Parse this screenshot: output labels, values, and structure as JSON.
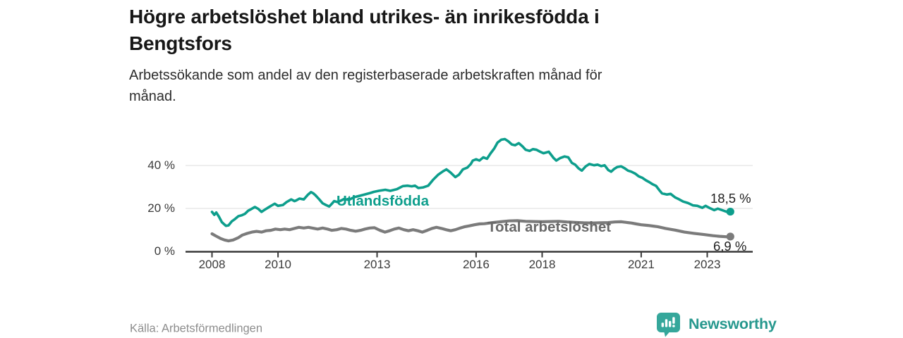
{
  "header": {
    "title_lines": [
      "Högre arbetslöshet bland utrikes- än inrikesfödda i",
      "Bengtsfors"
    ],
    "subtitle_lines": [
      "Arbetssökande som andel av den registerbaserade arbetskraften månad för",
      "månad."
    ]
  },
  "footer": {
    "source": "Källa: Arbetsförmedlingen",
    "brand": "Newsworthy"
  },
  "colors": {
    "accent_teal": "#0d9e8c",
    "gray_line": "#7b7b7b",
    "gray_label": "#686868",
    "grid": "#e3e3e3",
    "axis": "#3a3a3a",
    "logo_icon": "#35a79b",
    "logo_text": "#27988e"
  },
  "chart_data": {
    "type": "line",
    "title": "Högre arbetslöshet bland utrikes- än inrikesfödda i Bengtsfors",
    "subtitle": "Arbetssökande som andel av den registerbaserade arbetskraften månad för månad.",
    "x_axis": {
      "tick_values": [
        2008,
        2010,
        2013,
        2016,
        2018,
        2021,
        2023
      ],
      "tick_labels": [
        "2008",
        "2010",
        "2013",
        "2016",
        "2018",
        "2021",
        "2023"
      ],
      "range": [
        2008,
        2023.8
      ]
    },
    "y_axis": {
      "tick_values": [
        0,
        20,
        40
      ],
      "tick_labels": [
        "0 %",
        "20 %",
        "40 %"
      ],
      "grid_values": [
        20,
        40
      ],
      "ylim": [
        0,
        53
      ],
      "unit": "%"
    },
    "legend_position": "inline-labels",
    "grid": true,
    "series": [
      {
        "name": "Utlandsfödda",
        "color": "#0d9e8c",
        "end_label": "18,5 %",
        "end_value": 18.5,
        "points": [
          [
            2008.0,
            18.4
          ],
          [
            2008.07,
            17.0
          ],
          [
            2008.13,
            18.1
          ],
          [
            2008.21,
            16.2
          ],
          [
            2008.3,
            13.6
          ],
          [
            2008.42,
            11.9
          ],
          [
            2008.5,
            12.1
          ],
          [
            2008.6,
            14.0
          ],
          [
            2008.7,
            15.1
          ],
          [
            2008.8,
            16.4
          ],
          [
            2008.9,
            16.8
          ],
          [
            2009.0,
            17.5
          ],
          [
            2009.1,
            19.0
          ],
          [
            2009.2,
            19.8
          ],
          [
            2009.3,
            20.7
          ],
          [
            2009.4,
            19.8
          ],
          [
            2009.5,
            18.4
          ],
          [
            2009.6,
            19.4
          ],
          [
            2009.7,
            20.4
          ],
          [
            2009.8,
            21.3
          ],
          [
            2009.9,
            22.2
          ],
          [
            2010.0,
            21.2
          ],
          [
            2010.15,
            21.6
          ],
          [
            2010.25,
            22.9
          ],
          [
            2010.4,
            24.2
          ],
          [
            2010.5,
            23.4
          ],
          [
            2010.55,
            23.7
          ],
          [
            2010.65,
            24.6
          ],
          [
            2010.78,
            24.2
          ],
          [
            2010.9,
            26.3
          ],
          [
            2011.0,
            27.6
          ],
          [
            2011.06,
            27.1
          ],
          [
            2011.13,
            26.2
          ],
          [
            2011.25,
            24.2
          ],
          [
            2011.35,
            22.4
          ],
          [
            2011.45,
            21.6
          ],
          [
            2011.55,
            20.9
          ],
          [
            2011.62,
            22.0
          ],
          [
            2011.7,
            23.4
          ],
          [
            2011.8,
            23.0
          ],
          [
            2011.9,
            23.6
          ],
          [
            2012.0,
            24.4
          ],
          [
            2012.15,
            24.0
          ],
          [
            2012.3,
            25.2
          ],
          [
            2012.5,
            26.0
          ],
          [
            2012.65,
            26.6
          ],
          [
            2012.8,
            27.2
          ],
          [
            2012.9,
            27.7
          ],
          [
            2013.05,
            28.2
          ],
          [
            2013.25,
            28.7
          ],
          [
            2013.4,
            28.2
          ],
          [
            2013.6,
            29.0
          ],
          [
            2013.78,
            30.4
          ],
          [
            2013.92,
            30.6
          ],
          [
            2014.05,
            30.3
          ],
          [
            2014.15,
            30.6
          ],
          [
            2014.25,
            29.5
          ],
          [
            2014.4,
            29.8
          ],
          [
            2014.55,
            30.6
          ],
          [
            2014.7,
            33.4
          ],
          [
            2014.85,
            35.7
          ],
          [
            2015.0,
            37.3
          ],
          [
            2015.1,
            38.2
          ],
          [
            2015.22,
            36.8
          ],
          [
            2015.37,
            34.6
          ],
          [
            2015.48,
            35.7
          ],
          [
            2015.6,
            38.2
          ],
          [
            2015.73,
            39.0
          ],
          [
            2015.84,
            40.7
          ],
          [
            2015.9,
            42.3
          ],
          [
            2016.0,
            42.9
          ],
          [
            2016.1,
            42.3
          ],
          [
            2016.22,
            43.8
          ],
          [
            2016.33,
            43.1
          ],
          [
            2016.44,
            45.7
          ],
          [
            2016.55,
            47.9
          ],
          [
            2016.65,
            50.7
          ],
          [
            2016.76,
            52.0
          ],
          [
            2016.87,
            52.3
          ],
          [
            2016.97,
            51.3
          ],
          [
            2017.08,
            49.8
          ],
          [
            2017.18,
            49.4
          ],
          [
            2017.29,
            50.4
          ],
          [
            2017.4,
            49.0
          ],
          [
            2017.5,
            47.3
          ],
          [
            2017.62,
            46.8
          ],
          [
            2017.72,
            47.6
          ],
          [
            2017.83,
            47.3
          ],
          [
            2017.94,
            46.4
          ],
          [
            2018.04,
            45.7
          ],
          [
            2018.2,
            46.4
          ],
          [
            2018.35,
            43.4
          ],
          [
            2018.43,
            42.3
          ],
          [
            2018.54,
            43.4
          ],
          [
            2018.68,
            44.2
          ],
          [
            2018.79,
            43.8
          ],
          [
            2018.9,
            41.2
          ],
          [
            2019.0,
            40.4
          ],
          [
            2019.1,
            38.7
          ],
          [
            2019.2,
            37.6
          ],
          [
            2019.32,
            39.6
          ],
          [
            2019.43,
            40.7
          ],
          [
            2019.57,
            40.1
          ],
          [
            2019.68,
            40.4
          ],
          [
            2019.79,
            39.7
          ],
          [
            2019.89,
            40.1
          ],
          [
            2020.0,
            37.9
          ],
          [
            2020.09,
            37.1
          ],
          [
            2020.18,
            38.4
          ],
          [
            2020.28,
            39.3
          ],
          [
            2020.39,
            39.6
          ],
          [
            2020.5,
            38.7
          ],
          [
            2020.6,
            37.6
          ],
          [
            2020.7,
            37.1
          ],
          [
            2020.82,
            36.2
          ],
          [
            2020.92,
            35.0
          ],
          [
            2021.03,
            34.3
          ],
          [
            2021.14,
            33.1
          ],
          [
            2021.24,
            32.3
          ],
          [
            2021.35,
            31.2
          ],
          [
            2021.45,
            30.5
          ],
          [
            2021.55,
            28.5
          ],
          [
            2021.63,
            27.0
          ],
          [
            2021.78,
            26.5
          ],
          [
            2021.89,
            26.8
          ],
          [
            2022.03,
            25.1
          ],
          [
            2022.14,
            24.3
          ],
          [
            2022.27,
            23.2
          ],
          [
            2022.42,
            22.5
          ],
          [
            2022.57,
            21.4
          ],
          [
            2022.7,
            21.2
          ],
          [
            2022.85,
            20.3
          ],
          [
            2022.95,
            21.2
          ],
          [
            2023.06,
            20.3
          ],
          [
            2023.21,
            19.2
          ],
          [
            2023.32,
            19.9
          ],
          [
            2023.45,
            19.2
          ],
          [
            2023.6,
            18.4
          ],
          [
            2023.7,
            18.5
          ]
        ]
      },
      {
        "name": "Total arbetslöshet",
        "color": "#7b7b7b",
        "end_label": "6,9 %",
        "end_value": 6.9,
        "points": [
          [
            2008.0,
            8.2
          ],
          [
            2008.1,
            7.3
          ],
          [
            2008.26,
            6.0
          ],
          [
            2008.38,
            5.3
          ],
          [
            2008.5,
            4.9
          ],
          [
            2008.64,
            5.3
          ],
          [
            2008.8,
            6.4
          ],
          [
            2008.92,
            7.6
          ],
          [
            2009.07,
            8.4
          ],
          [
            2009.21,
            9.0
          ],
          [
            2009.35,
            9.3
          ],
          [
            2009.5,
            9.0
          ],
          [
            2009.64,
            9.6
          ],
          [
            2009.78,
            9.8
          ],
          [
            2009.92,
            10.4
          ],
          [
            2010.07,
            10.1
          ],
          [
            2010.2,
            10.4
          ],
          [
            2010.35,
            10.1
          ],
          [
            2010.5,
            10.7
          ],
          [
            2010.63,
            11.2
          ],
          [
            2010.78,
            10.9
          ],
          [
            2010.92,
            11.2
          ],
          [
            2011.06,
            10.8
          ],
          [
            2011.2,
            10.4
          ],
          [
            2011.35,
            10.9
          ],
          [
            2011.5,
            10.4
          ],
          [
            2011.63,
            9.8
          ],
          [
            2011.78,
            10.1
          ],
          [
            2011.92,
            10.7
          ],
          [
            2012.06,
            10.4
          ],
          [
            2012.2,
            9.8
          ],
          [
            2012.35,
            9.4
          ],
          [
            2012.5,
            9.8
          ],
          [
            2012.63,
            10.4
          ],
          [
            2012.78,
            10.9
          ],
          [
            2012.92,
            11.0
          ],
          [
            2013.09,
            9.8
          ],
          [
            2013.24,
            9.0
          ],
          [
            2013.38,
            9.6
          ],
          [
            2013.52,
            10.4
          ],
          [
            2013.66,
            10.9
          ],
          [
            2013.81,
            10.1
          ],
          [
            2013.95,
            9.6
          ],
          [
            2014.09,
            10.1
          ],
          [
            2014.23,
            9.6
          ],
          [
            2014.37,
            9.0
          ],
          [
            2014.52,
            9.8
          ],
          [
            2014.66,
            10.7
          ],
          [
            2014.8,
            11.2
          ],
          [
            2014.95,
            10.7
          ],
          [
            2015.09,
            10.1
          ],
          [
            2015.23,
            9.6
          ],
          [
            2015.37,
            10.1
          ],
          [
            2015.52,
            10.9
          ],
          [
            2015.66,
            11.5
          ],
          [
            2015.8,
            11.9
          ],
          [
            2015.95,
            12.4
          ],
          [
            2016.1,
            12.8
          ],
          [
            2016.25,
            12.9
          ],
          [
            2016.5,
            13.4
          ],
          [
            2016.75,
            13.8
          ],
          [
            2017.0,
            14.2
          ],
          [
            2017.25,
            14.3
          ],
          [
            2017.5,
            14.0
          ],
          [
            2017.75,
            13.9
          ],
          [
            2018.0,
            13.8
          ],
          [
            2018.25,
            13.9
          ],
          [
            2018.5,
            14.0
          ],
          [
            2018.75,
            13.7
          ],
          [
            2019.0,
            13.5
          ],
          [
            2019.25,
            13.3
          ],
          [
            2019.5,
            13.2
          ],
          [
            2019.75,
            13.3
          ],
          [
            2020.0,
            13.4
          ],
          [
            2020.2,
            13.7
          ],
          [
            2020.4,
            13.8
          ],
          [
            2020.55,
            13.5
          ],
          [
            2020.7,
            13.2
          ],
          [
            2020.85,
            12.8
          ],
          [
            2021.0,
            12.4
          ],
          [
            2021.2,
            12.1
          ],
          [
            2021.35,
            11.8
          ],
          [
            2021.5,
            11.5
          ],
          [
            2021.74,
            10.7
          ],
          [
            2022.03,
            9.9
          ],
          [
            2022.31,
            9.0
          ],
          [
            2022.6,
            8.4
          ],
          [
            2022.88,
            7.9
          ],
          [
            2023.17,
            7.3
          ],
          [
            2023.38,
            7.0
          ],
          [
            2023.6,
            6.8
          ],
          [
            2023.7,
            6.9
          ]
        ]
      }
    ]
  }
}
